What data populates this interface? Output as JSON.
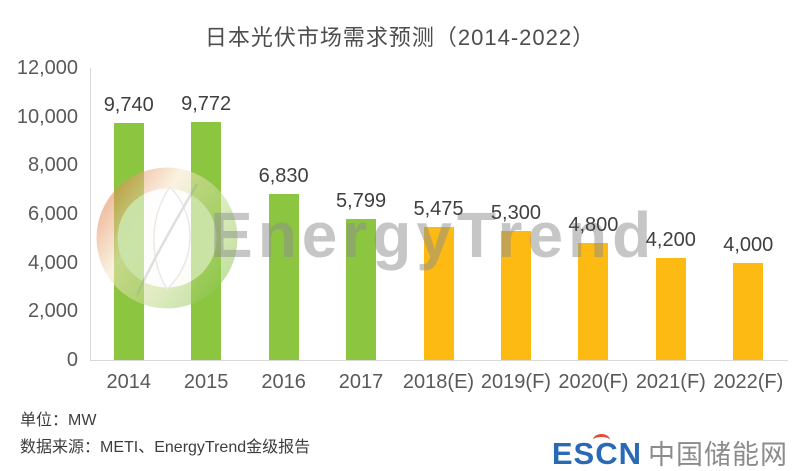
{
  "title": "日本光伏市场需求预测（2014-2022）",
  "chart_data": {
    "type": "bar",
    "title": "日本光伏市场需求预测（2014-2022）",
    "categories": [
      "2014",
      "2015",
      "2016",
      "2017",
      "2018(E)",
      "2019(F)",
      "2020(F)",
      "2021(F)",
      "2022(F)"
    ],
    "values": [
      9740,
      9772,
      6830,
      5799,
      5475,
      5300,
      4800,
      4200,
      4000
    ],
    "value_labels": [
      "9,740",
      "9,772",
      "6,830",
      "5,799",
      "5,475",
      "5,300",
      "4,800",
      "4,200",
      "4,000"
    ],
    "bar_colors": [
      "#8cc540",
      "#8cc540",
      "#8cc540",
      "#8cc540",
      "#fdba12",
      "#fdba12",
      "#fdba12",
      "#fdba12",
      "#fdba12"
    ],
    "xlabel": "",
    "ylabel": "",
    "ylim": [
      0,
      12000
    ],
    "ytick_step": 2000,
    "yticks": [
      "0",
      "2,000",
      "4,000",
      "6,000",
      "8,000",
      "10,000",
      "12,000"
    ],
    "grid": false,
    "legend": "none",
    "unit": "MW"
  },
  "watermark": {
    "text": "EnergyTrend"
  },
  "footer": {
    "unit_label": "单位：MW",
    "source_label": "数据来源：METI、EnergyTrend金级报告"
  },
  "logo": {
    "escn": "ESCN",
    "cn": "中国储能网"
  },
  "colors": {
    "bar_green": "#8cc540",
    "bar_yellow": "#fdba12",
    "axis_line": "#d9d9d9",
    "tick_text": "#595959",
    "label_text": "#3f3f3f",
    "title_text": "#4d4d4d",
    "escn_blue": "#2a6ab5",
    "escn_red": "#e04b3a",
    "logo_gray": "#8c8c8c"
  }
}
